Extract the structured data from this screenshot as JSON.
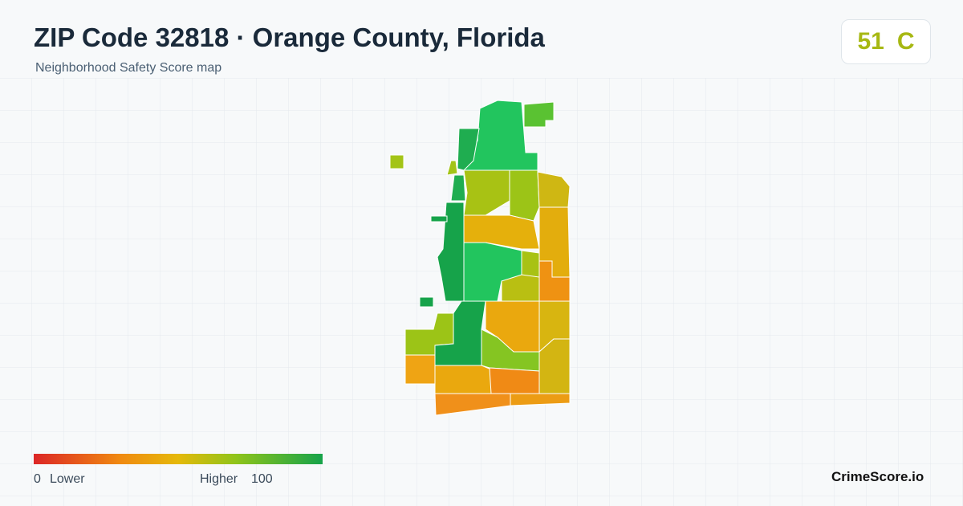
{
  "header": {
    "title": "ZIP Code 32818 · Orange County, Florida",
    "subtitle": "Neighborhood Safety Score map"
  },
  "score": {
    "value": "51",
    "grade": "C"
  },
  "legend": {
    "min": "0",
    "min_label": "Lower",
    "max_label": "Higher",
    "max": "100"
  },
  "footer": {
    "brand": "CrimeScore.io"
  }
}
